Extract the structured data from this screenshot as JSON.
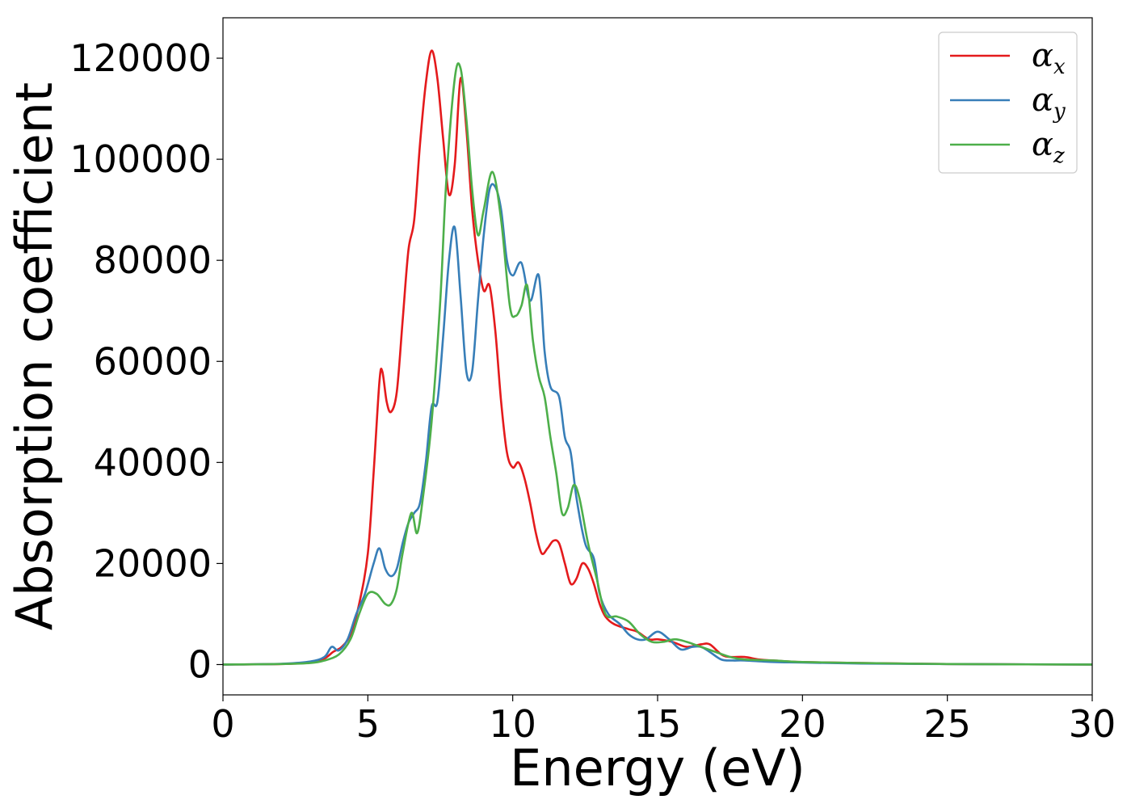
{
  "chart_data": {
    "type": "line",
    "title": "",
    "xlabel": "Energy (eV)",
    "ylabel": "Absorption coefficient",
    "xlim": [
      0,
      30
    ],
    "ylim": [
      -6000,
      128000
    ],
    "xticks": [
      0,
      5,
      10,
      15,
      20,
      25,
      30
    ],
    "yticks": [
      0,
      20000,
      40000,
      60000,
      80000,
      100000,
      120000
    ],
    "grid": false,
    "legend_position": "top-right",
    "series": [
      {
        "name": "α",
        "subscript": "x",
        "color": "#e41a1c",
        "x": [
          0,
          2,
          3,
          3.5,
          3.8,
          4.1,
          4.4,
          4.7,
          5.0,
          5.2,
          5.4,
          5.5,
          5.65,
          5.8,
          6.0,
          6.2,
          6.4,
          6.6,
          6.8,
          7.0,
          7.2,
          7.4,
          7.6,
          7.8,
          8.0,
          8.2,
          8.4,
          8.6,
          8.8,
          9.0,
          9.2,
          9.4,
          9.6,
          9.8,
          10.0,
          10.2,
          10.4,
          10.6,
          10.8,
          11.0,
          11.2,
          11.4,
          11.6,
          11.8,
          12.0,
          12.2,
          12.4,
          12.6,
          12.8,
          13.0,
          13.2,
          13.5,
          14.0,
          14.3,
          14.7,
          15.0,
          15.5,
          16.0,
          16.5,
          16.8,
          17.2,
          17.5,
          18.0,
          18.5,
          19.0,
          20,
          22,
          25,
          30
        ],
        "y": [
          0,
          100,
          400,
          1200,
          2500,
          3500,
          6000,
          12000,
          22000,
          38000,
          56000,
          58000,
          52000,
          50000,
          54000,
          68000,
          82000,
          88000,
          103000,
          115000,
          121500,
          116000,
          104000,
          93000,
          99000,
          116000,
          106000,
          90000,
          80000,
          74000,
          75000,
          66000,
          52000,
          42000,
          39000,
          40000,
          37000,
          32000,
          26000,
          22000,
          23000,
          24500,
          24000,
          20000,
          16000,
          17000,
          20000,
          19000,
          16000,
          12000,
          9500,
          8000,
          7000,
          6500,
          5000,
          5000,
          4500,
          3500,
          4000,
          4000,
          2000,
          1500,
          1500,
          1000,
          800,
          500,
          300,
          100,
          0
        ]
      },
      {
        "name": "α",
        "subscript": "y",
        "color": "#377eb8",
        "x": [
          0,
          2,
          3,
          3.5,
          3.75,
          4.0,
          4.3,
          4.6,
          4.9,
          5.2,
          5.4,
          5.6,
          5.8,
          6.0,
          6.2,
          6.4,
          6.6,
          6.8,
          7.0,
          7.2,
          7.4,
          7.6,
          7.8,
          8.0,
          8.2,
          8.4,
          8.6,
          8.8,
          9.0,
          9.2,
          9.4,
          9.6,
          9.8,
          10.0,
          10.3,
          10.6,
          10.9,
          11.1,
          11.3,
          11.6,
          11.8,
          12.0,
          12.2,
          12.5,
          12.8,
          13.0,
          13.3,
          13.7,
          14.0,
          14.3,
          14.6,
          15.0,
          15.4,
          15.8,
          16.2,
          16.5,
          16.8,
          17.2,
          17.6,
          18.0,
          19,
          20,
          22,
          25,
          30
        ],
        "y": [
          0,
          150,
          600,
          1500,
          3500,
          2800,
          5000,
          10000,
          14000,
          20000,
          23000,
          19000,
          17500,
          19000,
          24000,
          28000,
          30000,
          32000,
          40000,
          51000,
          52000,
          65000,
          80000,
          86500,
          73000,
          58000,
          58000,
          72000,
          85000,
          94000,
          94500,
          90000,
          80000,
          77000,
          79500,
          72000,
          77000,
          62000,
          55000,
          53000,
          45000,
          42000,
          33000,
          24000,
          21000,
          14000,
          10000,
          8000,
          6000,
          5000,
          5000,
          6500,
          5000,
          3000,
          3500,
          3500,
          2500,
          1000,
          800,
          800,
          500,
          400,
          200,
          100,
          0
        ]
      },
      {
        "name": "α",
        "subscript": "z",
        "color": "#4daf4a",
        "x": [
          0,
          2,
          3,
          3.5,
          4.0,
          4.4,
          4.7,
          5.0,
          5.3,
          5.6,
          5.8,
          6.0,
          6.2,
          6.5,
          6.7,
          6.9,
          7.2,
          7.5,
          7.7,
          8.0,
          8.2,
          8.4,
          8.6,
          8.8,
          9.0,
          9.3,
          9.6,
          9.9,
          10.1,
          10.3,
          10.5,
          10.7,
          10.9,
          11.1,
          11.3,
          11.5,
          11.7,
          11.9,
          12.1,
          12.3,
          12.6,
          12.9,
          13.2,
          13.6,
          14.0,
          14.4,
          14.8,
          15.2,
          15.6,
          16.0,
          16.5,
          17.0,
          17.5,
          18.0,
          19,
          20,
          22,
          25,
          30
        ],
        "y": [
          0,
          100,
          300,
          800,
          2000,
          5000,
          10000,
          14000,
          14000,
          12000,
          12000,
          15000,
          22000,
          30000,
          26000,
          33000,
          48000,
          72000,
          95000,
          116000,
          118000,
          108000,
          94000,
          85000,
          90000,
          97500,
          88000,
          71000,
          69000,
          71000,
          75000,
          64000,
          57000,
          53000,
          45000,
          38000,
          30000,
          31000,
          35500,
          33000,
          24000,
          17000,
          10000,
          9500,
          8500,
          6000,
          4500,
          4500,
          5000,
          4500,
          3500,
          2500,
          1500,
          1000,
          800,
          500,
          300,
          100,
          0
        ]
      }
    ]
  }
}
